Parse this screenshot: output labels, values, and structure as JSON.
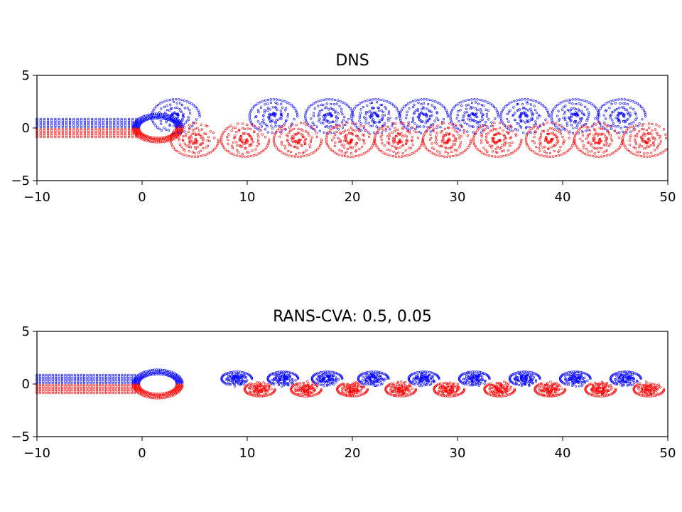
{
  "chart_data": [
    {
      "type": "scatter",
      "title": "DNS",
      "xlabel": "",
      "ylabel": "",
      "xlim": [
        -10,
        50
      ],
      "ylim": [
        -5,
        5
      ],
      "xticks": [
        -10,
        0,
        10,
        20,
        30,
        40,
        50
      ],
      "xtick_labels": [
        "−10",
        "0",
        "10",
        "20",
        "30",
        "40",
        "50"
      ],
      "yticks": [
        -5,
        0,
        5
      ],
      "ytick_labels": [
        "−5",
        "0",
        "5"
      ],
      "grid": false,
      "series_colors": [
        "#0000ff",
        "#ff0000"
      ],
      "pattern": "vortex-street",
      "vortex_centers_upper": [
        3.2,
        12.5,
        17.8,
        22.2,
        26.8,
        31.6,
        36.4,
        41.2,
        45.6
      ],
      "vortex_centers_lower": [
        5.0,
        9.8,
        14.8,
        19.8,
        24.4,
        29.0,
        33.8,
        38.8,
        43.4,
        48.0
      ],
      "vortex_offset": 1.1,
      "vortex_radius": 1.5
    },
    {
      "type": "scatter",
      "title": "RANS-CVA: 0.5, 0.05",
      "xlabel": "",
      "ylabel": "",
      "xlim": [
        -10,
        50
      ],
      "ylim": [
        -5,
        5
      ],
      "xticks": [
        -10,
        0,
        10,
        20,
        30,
        40,
        50
      ],
      "xtick_labels": [
        "−10",
        "0",
        "10",
        "20",
        "30",
        "40",
        "50"
      ],
      "yticks": [
        -5,
        0,
        5
      ],
      "ytick_labels": [
        "−5",
        "0",
        "5"
      ],
      "grid": false,
      "series_colors": [
        "#0000ff",
        "#ff0000"
      ],
      "pattern": "narrow-wake",
      "vortex_centers_upper": [
        9.0,
        13.4,
        17.6,
        22.0,
        26.8,
        31.6,
        36.4,
        41.2,
        46.0
      ],
      "vortex_centers_lower": [
        11.2,
        15.6,
        20.0,
        24.6,
        29.2,
        34.0,
        38.8,
        43.6,
        48.2
      ],
      "vortex_offset": 0.5,
      "vortex_radius": 0.8
    }
  ]
}
